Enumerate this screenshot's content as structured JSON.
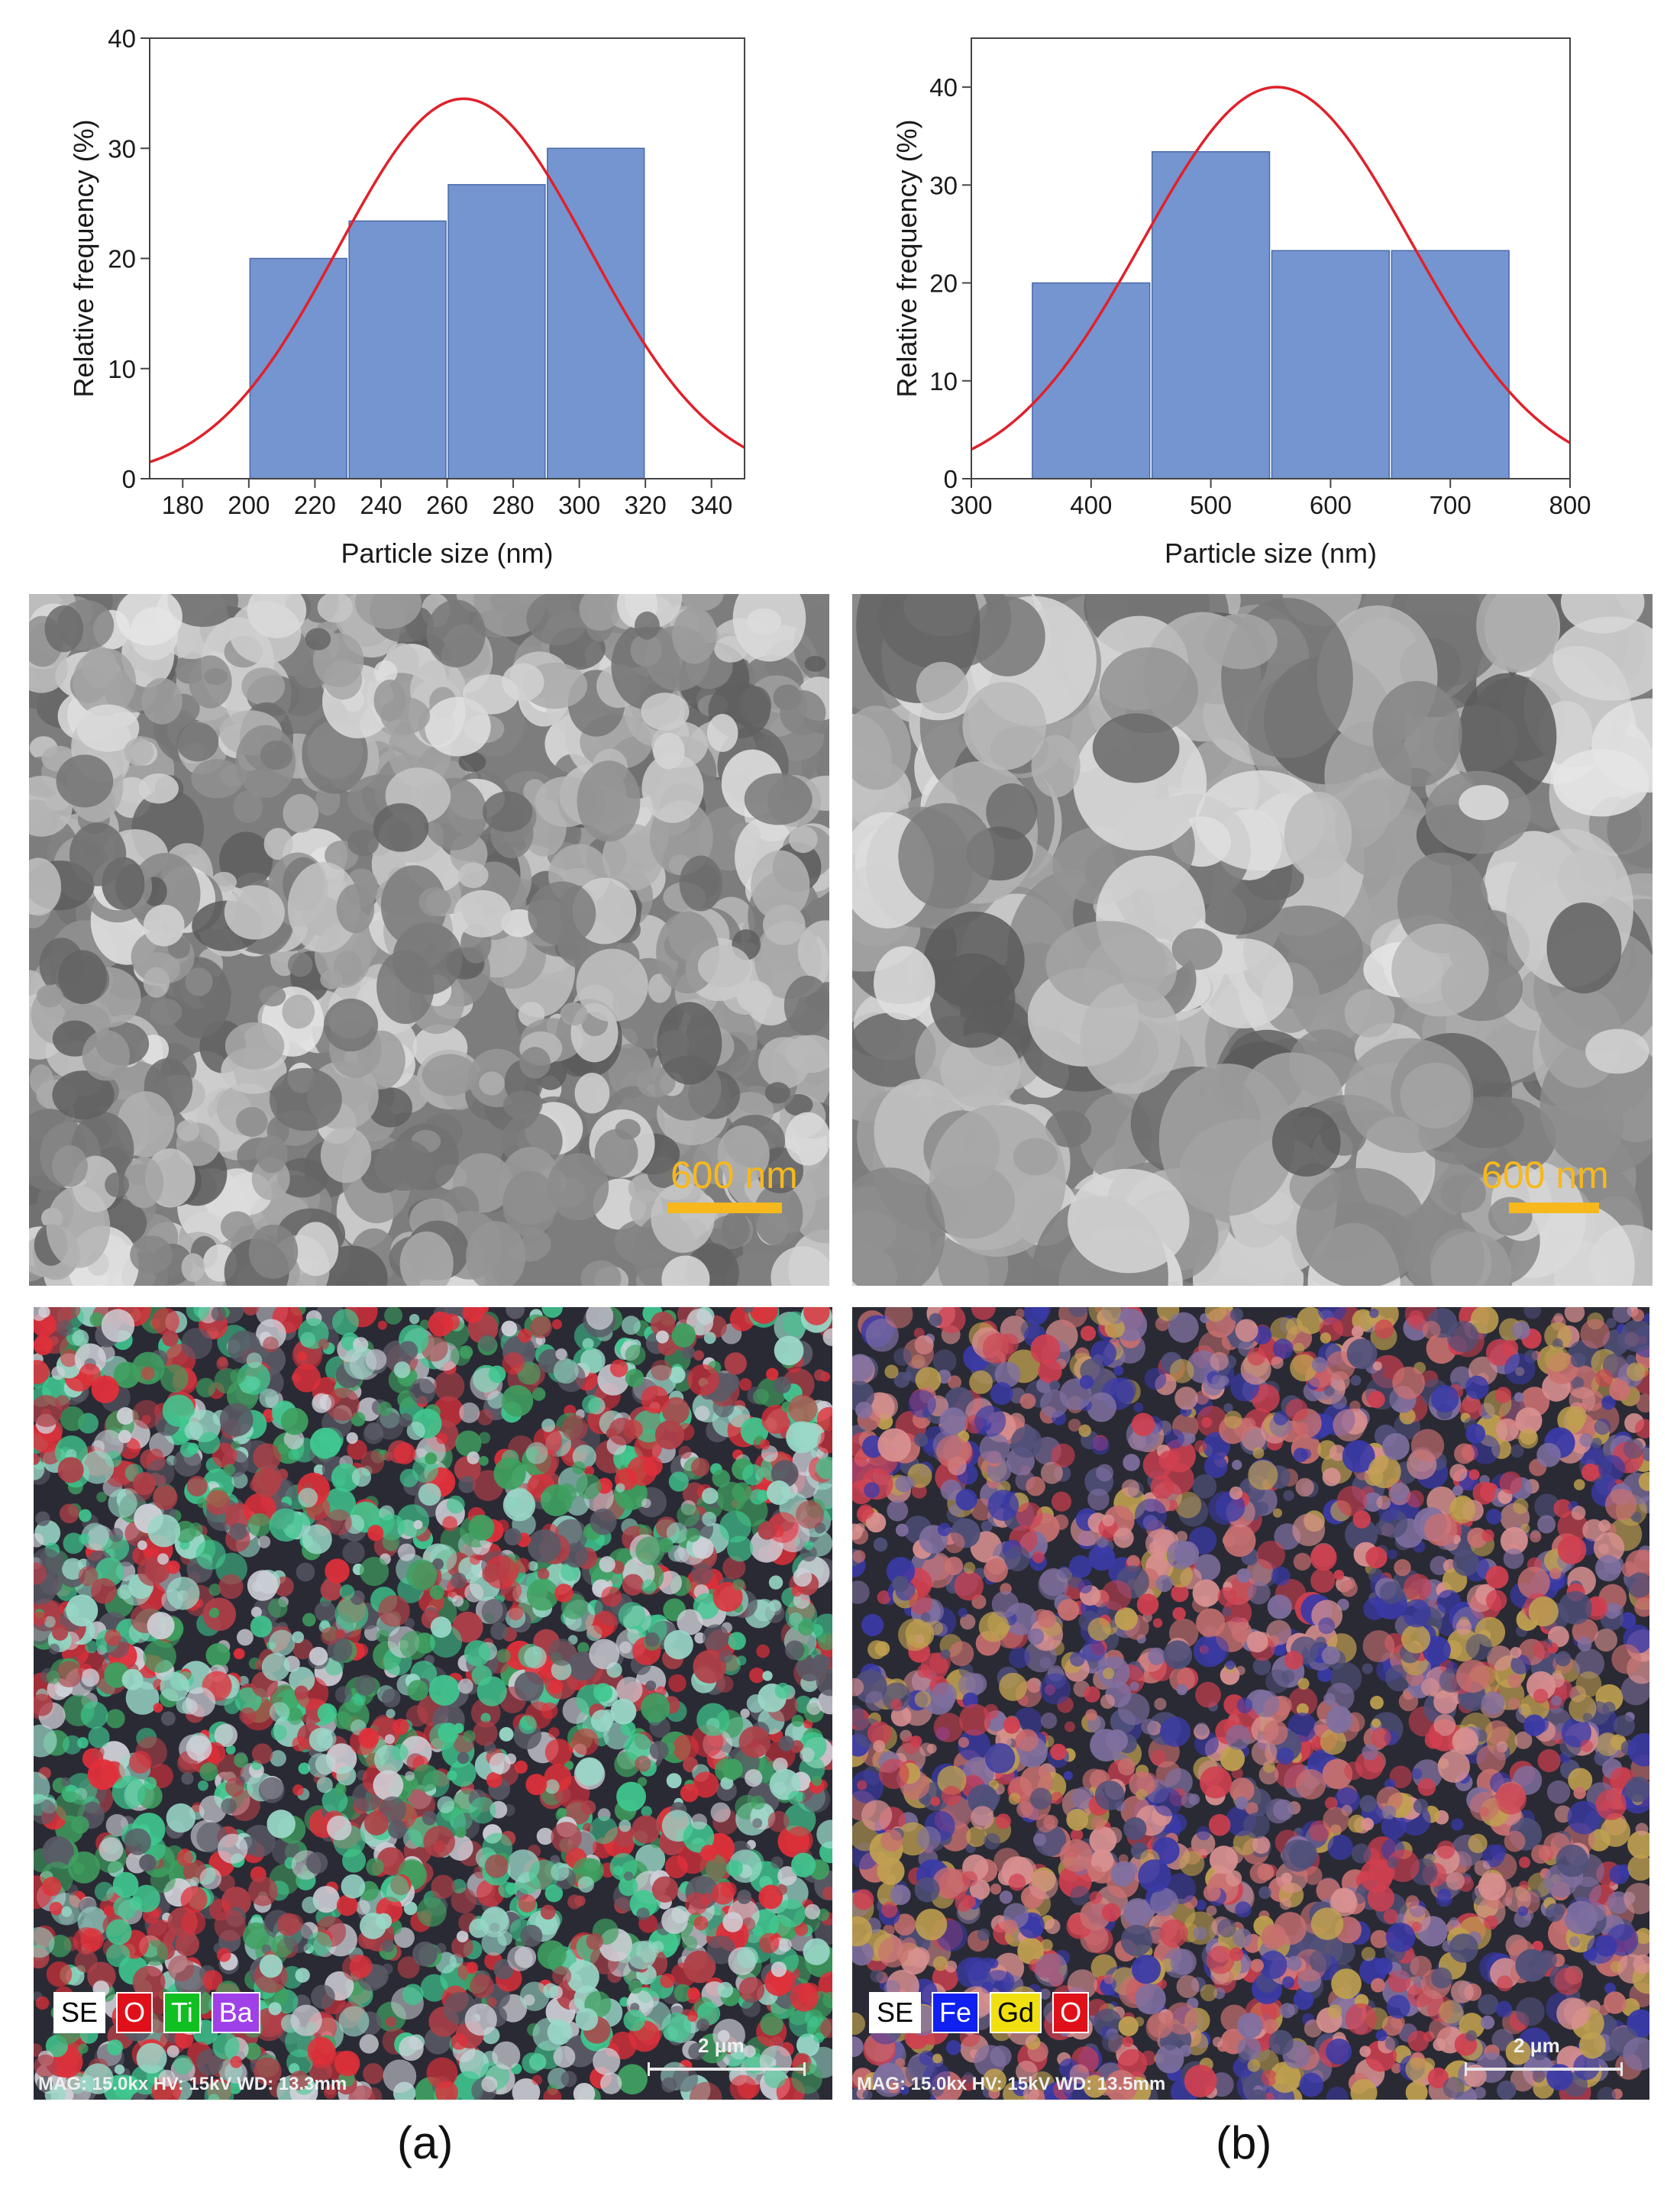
{
  "chart_data": [
    {
      "type": "bar",
      "panel": "a",
      "xlabel": "Particle size (nm)",
      "ylabel": "Relative frequency (%)",
      "xlim": [
        170,
        350
      ],
      "ylim": [
        0,
        40
      ],
      "xticks": [
        180,
        200,
        220,
        240,
        260,
        280,
        300,
        320,
        340
      ],
      "yticks": [
        0,
        10,
        20,
        30,
        40
      ],
      "bins": [
        [
          200,
          230
        ],
        [
          230,
          260
        ],
        [
          260,
          290
        ],
        [
          290,
          320
        ]
      ],
      "values": [
        20,
        23.4,
        26.7,
        30
      ],
      "fit_curve": {
        "type": "gaussian",
        "mean": 265,
        "sigma": 38,
        "peak": 34.5,
        "color": "#e0212b"
      },
      "bar_color": "#7495cf",
      "grid": false
    },
    {
      "type": "bar",
      "panel": "b",
      "xlabel": "Particle size (nm)",
      "ylabel": "Relative frequency (%)",
      "xlim": [
        300,
        800
      ],
      "ylim": [
        0,
        45
      ],
      "xticks": [
        300,
        400,
        500,
        600,
        700,
        800
      ],
      "yticks": [
        0,
        10,
        20,
        30,
        40
      ],
      "bins": [
        [
          350,
          450
        ],
        [
          450,
          550
        ],
        [
          550,
          650
        ],
        [
          650,
          750
        ]
      ],
      "values": [
        20,
        33.4,
        23.3,
        23.3
      ],
      "fit_curve": {
        "type": "gaussian",
        "mean": 555,
        "sigma": 112,
        "peak": 40,
        "color": "#e0212b"
      },
      "bar_color": "#7495cf",
      "grid": false
    }
  ],
  "sem": {
    "a": {
      "scale_label": "600 nm"
    },
    "b": {
      "scale_label": "600 nm"
    }
  },
  "eds": {
    "a": {
      "legend": [
        {
          "label": "SE",
          "bg": "#ffffff",
          "fg": "#000000"
        },
        {
          "label": "O",
          "bg": "#e0101a",
          "fg": "#ffffff"
        },
        {
          "label": "Ti",
          "bg": "#10c020",
          "fg": "#ffffff"
        },
        {
          "label": "Ba",
          "bg": "#a040e8",
          "fg": "#ffffff"
        }
      ],
      "info": "MAG: 15.0kx  HV: 15kV  WD: 13.3mm",
      "scale_label": "2 μm"
    },
    "b": {
      "legend": [
        {
          "label": "SE",
          "bg": "#ffffff",
          "fg": "#000000"
        },
        {
          "label": "Fe",
          "bg": "#1020f0",
          "fg": "#ffffff"
        },
        {
          "label": "Gd",
          "bg": "#f0e010",
          "fg": "#000000"
        },
        {
          "label": "O",
          "bg": "#e0101a",
          "fg": "#ffffff"
        }
      ],
      "info": "MAG: 15.0kx  HV: 15kV  WD: 13.5mm",
      "scale_label": "2 μm"
    }
  },
  "panel_labels": {
    "a": "(a)",
    "b": "(b)"
  }
}
